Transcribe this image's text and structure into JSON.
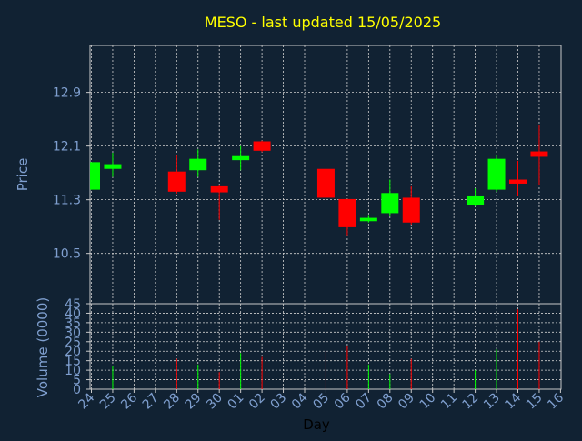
{
  "chart_data": {
    "type": "candlestick",
    "title": "MESO - last updated 15/05/2025",
    "ylabel_price": "Price",
    "ylabel_volume": "Volume (0000)",
    "xlabel": "Day",
    "price_ylim": [
      9.75,
      13.6
    ],
    "price_ticks": [
      "10.5",
      "11.3",
      "12.1",
      "12.9"
    ],
    "volume_ylim": [
      0,
      45
    ],
    "volume_ticks": [
      "0",
      "5",
      "10",
      "15",
      "20",
      "25",
      "30",
      "35",
      "40",
      "45"
    ],
    "x_ticks": [
      "24",
      "25",
      "26",
      "27",
      "28",
      "29",
      "30",
      "01",
      "02",
      "03",
      "04",
      "05",
      "06",
      "07",
      "08",
      "09",
      "10",
      "11",
      "12",
      "13",
      "14",
      "15",
      "16"
    ],
    "colors": {
      "up": "#00ff00",
      "down": "#ff0000",
      "title": "#ffff00",
      "axis_text": "#7f9fcf",
      "background": "#112233"
    },
    "candles": [
      {
        "day": "24",
        "open": 11.45,
        "close": 11.86,
        "high": 11.86,
        "low": 11.45,
        "volume": 0
      },
      {
        "day": "25",
        "open": 11.76,
        "close": 11.83,
        "high": 12.0,
        "low": 11.64,
        "volume": 12
      },
      {
        "day": "28",
        "open": 11.72,
        "close": 11.42,
        "high": 11.97,
        "low": 11.39,
        "volume": 16
      },
      {
        "day": "29",
        "open": 11.74,
        "close": 11.91,
        "high": 12.05,
        "low": 11.64,
        "volume": 13
      },
      {
        "day": "30",
        "open": 11.5,
        "close": 11.41,
        "high": 11.52,
        "low": 11.0,
        "volume": 9
      },
      {
        "day": "01",
        "open": 11.89,
        "close": 11.95,
        "high": 12.1,
        "low": 11.74,
        "volume": 19
      },
      {
        "day": "02",
        "open": 12.17,
        "close": 12.03,
        "high": 12.18,
        "low": 12.01,
        "volume": 17
      },
      {
        "day": "05",
        "open": 11.76,
        "close": 11.33,
        "high": 11.76,
        "low": 11.29,
        "volume": 20
      },
      {
        "day": "06",
        "open": 11.31,
        "close": 10.89,
        "high": 11.31,
        "low": 10.77,
        "volume": 23
      },
      {
        "day": "07",
        "open": 10.98,
        "close": 11.03,
        "high": 11.06,
        "low": 10.96,
        "volume": 13
      },
      {
        "day": "08",
        "open": 11.1,
        "close": 11.4,
        "high": 11.6,
        "low": 11.05,
        "volume": 8
      },
      {
        "day": "09",
        "open": 11.33,
        "close": 10.96,
        "high": 11.5,
        "low": 10.93,
        "volume": 16
      },
      {
        "day": "12",
        "open": 11.22,
        "close": 11.35,
        "high": 11.47,
        "low": 11.2,
        "volume": 10
      },
      {
        "day": "13",
        "open": 11.45,
        "close": 11.91,
        "high": 11.96,
        "low": 11.42,
        "volume": 21
      },
      {
        "day": "14",
        "open": 11.6,
        "close": 11.54,
        "high": 11.88,
        "low": 11.35,
        "volume": 42
      },
      {
        "day": "15",
        "open": 12.02,
        "close": 11.94,
        "high": 12.41,
        "low": 11.52,
        "volume": 25
      }
    ]
  }
}
